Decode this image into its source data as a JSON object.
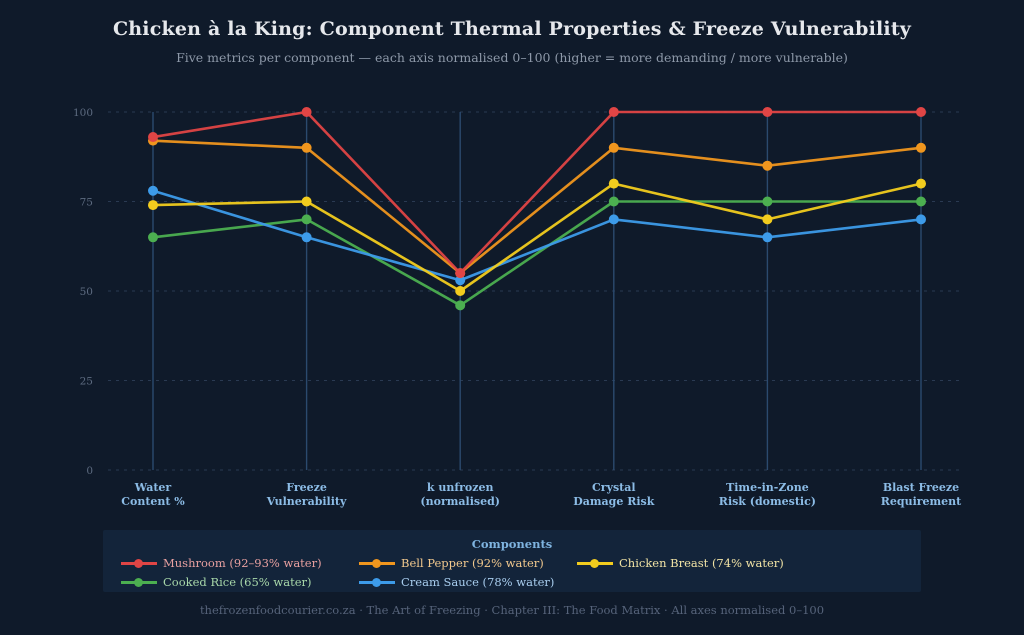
{
  "chart_data": {
    "type": "line",
    "subtype": "parallel-coordinates",
    "title": "Chicken à la King: Component Thermal Properties & Freeze Vulnerability",
    "subtitle": "Five metrics per component — each axis normalised 0–100 (higher = more demanding / more vulnerable)",
    "categories": [
      [
        "Water",
        "Content %"
      ],
      [
        "Freeze",
        "Vulnerability"
      ],
      [
        "k unfrozen",
        "(normalised)"
      ],
      [
        "Crystal",
        "Damage Risk"
      ],
      [
        "Time-in-Zone",
        "Risk (domestic)"
      ],
      [
        "Blast Freeze",
        "Requirement"
      ]
    ],
    "ylim": [
      0,
      100
    ],
    "yticks": [
      0,
      25,
      50,
      75,
      100
    ],
    "grid": true,
    "legend_title": "Components",
    "legend_position": "bottom",
    "series": [
      {
        "name": "Mushroom (92–93% water)",
        "color": "#e04545",
        "text_color": "#e8a0a0",
        "values": [
          93,
          100,
          55,
          100,
          100,
          100
        ]
      },
      {
        "name": "Bell Pepper (92% water)",
        "color": "#f0961e",
        "text_color": "#f2c98e",
        "values": [
          92,
          90,
          55,
          90,
          85,
          90
        ]
      },
      {
        "name": "Chicken Breast (74% water)",
        "color": "#f2cc1e",
        "text_color": "#f1e3a5",
        "values": [
          74,
          75,
          50,
          80,
          70,
          80
        ]
      },
      {
        "name": "Cooked Rice (65% water)",
        "color": "#4caf50",
        "text_color": "#a8d8aa",
        "values": [
          65,
          70,
          46,
          75,
          75,
          75
        ]
      },
      {
        "name": "Cream Sauce (78% water)",
        "color": "#3d9be9",
        "text_color": "#a8cdee",
        "values": [
          78,
          65,
          53,
          70,
          65,
          70
        ]
      }
    ],
    "draw_order": [
      3,
      4,
      2,
      1,
      0
    ]
  },
  "footer": "thefrozenfoodcourier.co.za · The Art of Freezing · Chapter III: The Food Matrix · All axes normalised 0–100"
}
